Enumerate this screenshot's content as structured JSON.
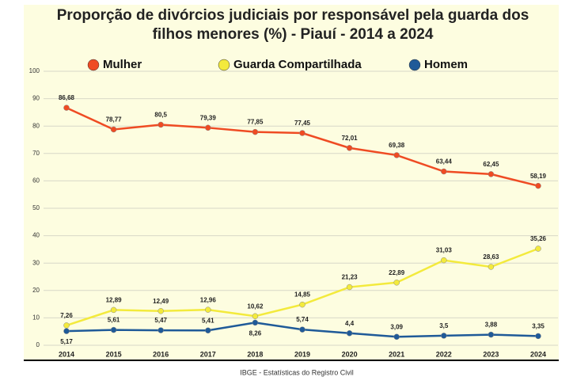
{
  "chart_data": {
    "type": "line",
    "title": "Proporção de divórcios judiciais por responsável pela guarda dos filhos menores (%) - Piauí - 2014 a 2024",
    "source": "IBGE - Estatísticas do Registro Civil",
    "categories": [
      "2014",
      "2015",
      "2016",
      "2017",
      "2018",
      "2019",
      "2020",
      "2021",
      "2022",
      "2023",
      "2024"
    ],
    "series": [
      {
        "name": "Mulher",
        "color": "#ef4b23",
        "values": [
          86.68,
          78.77,
          80.5,
          79.39,
          77.85,
          77.45,
          72.01,
          69.38,
          63.44,
          62.45,
          58.19
        ],
        "value_labels": [
          "86,68",
          "78,77",
          "80,5",
          "79,39",
          "77,85",
          "77,45",
          "72,01",
          "69,38",
          "63,44",
          "62,45",
          "58,19"
        ]
      },
      {
        "name": "Guarda Compartilhada",
        "color": "#f3ea3c",
        "values": [
          7.26,
          12.89,
          12.49,
          12.96,
          10.62,
          14.85,
          21.23,
          22.89,
          31.03,
          28.63,
          35.26
        ],
        "value_labels": [
          "7,26",
          "12,89",
          "12,49",
          "12,96",
          "10,62",
          "14,85",
          "21,23",
          "22,89",
          "31,03",
          "28,63",
          "35,26"
        ]
      },
      {
        "name": "Homem",
        "color": "#1f5a98",
        "values": [
          5.17,
          5.61,
          5.47,
          5.41,
          8.26,
          5.74,
          4.4,
          3.09,
          3.5,
          3.88,
          3.35
        ],
        "value_labels": [
          "5,17",
          "5,61",
          "5,47",
          "5,41",
          "8,26",
          "5,74",
          "4,4",
          "3,09",
          "3,5",
          "3,88",
          "3,35"
        ]
      }
    ],
    "ylim": [
      0,
      100
    ],
    "yticks": [
      0,
      10,
      20,
      30,
      40,
      50,
      60,
      70,
      80,
      90,
      100
    ],
    "grid": true
  }
}
